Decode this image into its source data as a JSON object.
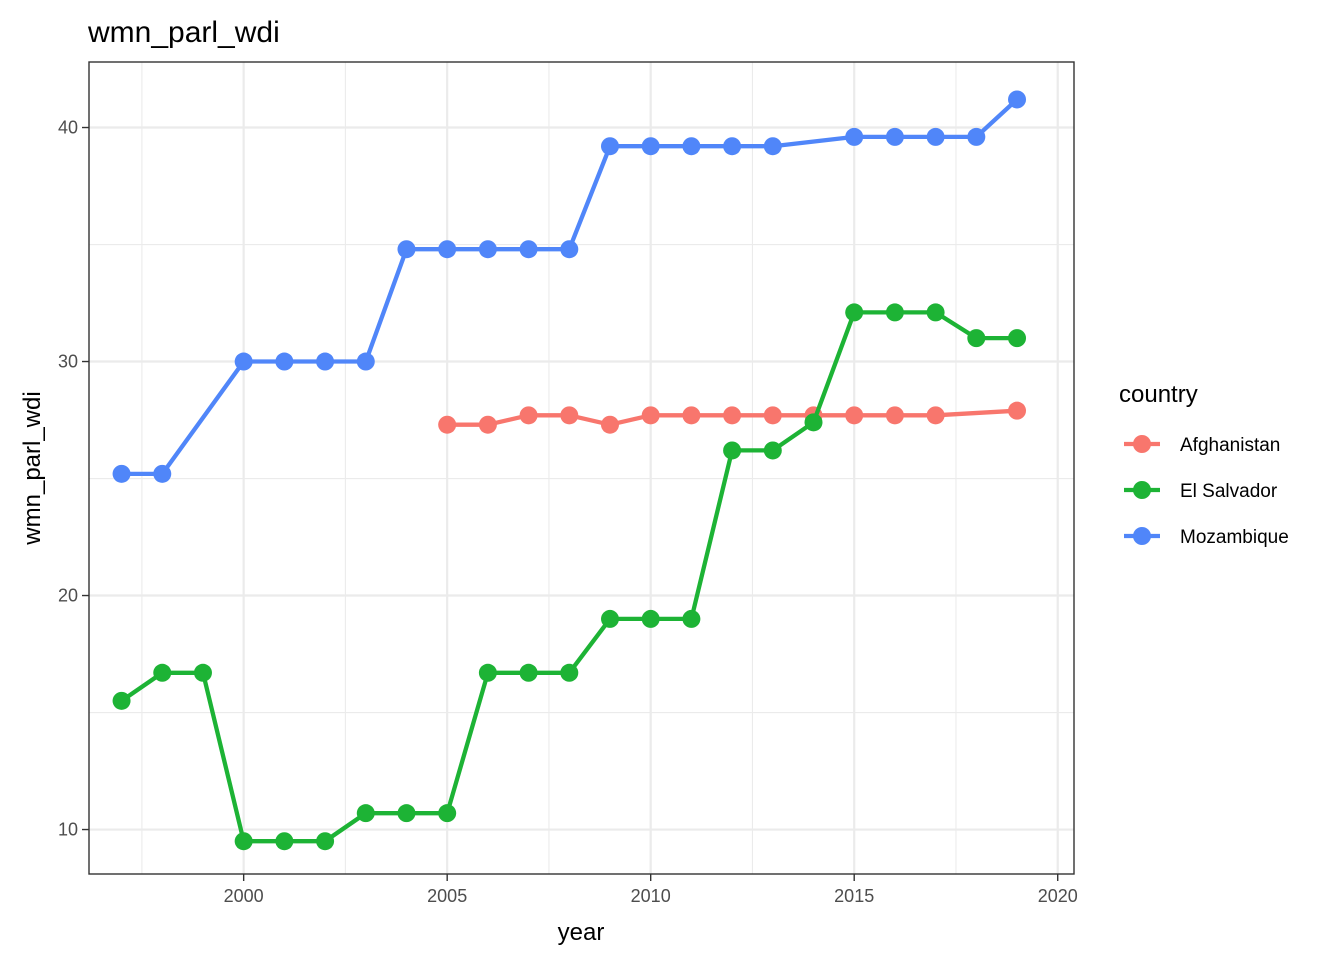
{
  "chart_data": {
    "type": "line",
    "title": "wmn_parl_wdi",
    "xlabel": "year",
    "ylabel": "wmn_parl_wdi",
    "xlim": [
      1996.2,
      2020.4
    ],
    "ylim": [
      8.1,
      42.8
    ],
    "x_ticks": [
      2000,
      2005,
      2010,
      2015,
      2020
    ],
    "y_ticks": [
      10,
      20,
      30,
      40
    ],
    "grid": true,
    "legend": {
      "title": "country",
      "position": "right"
    },
    "series": [
      {
        "name": "Afghanistan",
        "color": "#F8766D",
        "x": [
          2005,
          2006,
          2007,
          2008,
          2009,
          2010,
          2011,
          2012,
          2013,
          2014,
          2015,
          2016,
          2017,
          2019
        ],
        "y": [
          27.3,
          27.3,
          27.7,
          27.7,
          27.3,
          27.7,
          27.7,
          27.7,
          27.7,
          27.7,
          27.7,
          27.7,
          27.7,
          27.9
        ]
      },
      {
        "name": "El Salvador",
        "color": "#1DB335",
        "x": [
          1997,
          1998,
          1999,
          2000,
          2001,
          2002,
          2003,
          2004,
          2005,
          2006,
          2007,
          2008,
          2009,
          2010,
          2011,
          2012,
          2013,
          2014,
          2015,
          2016,
          2017,
          2018,
          2019
        ],
        "y": [
          15.5,
          16.7,
          16.7,
          9.5,
          9.5,
          9.5,
          10.7,
          10.7,
          10.7,
          16.7,
          16.7,
          16.7,
          19.0,
          19.0,
          19.0,
          26.2,
          26.2,
          27.4,
          32.1,
          32.1,
          32.1,
          31.0,
          31.0
        ]
      },
      {
        "name": "Mozambique",
        "color": "#5086F9",
        "x": [
          1997,
          1998,
          2000,
          2001,
          2002,
          2003,
          2004,
          2005,
          2006,
          2007,
          2008,
          2009,
          2010,
          2011,
          2012,
          2013,
          2015,
          2016,
          2017,
          2018,
          2019
        ],
        "y": [
          25.2,
          25.2,
          30.0,
          30.0,
          30.0,
          30.0,
          34.8,
          34.8,
          34.8,
          34.8,
          34.8,
          39.2,
          39.2,
          39.2,
          39.2,
          39.2,
          39.6,
          39.6,
          39.6,
          39.6,
          41.2
        ]
      }
    ]
  }
}
